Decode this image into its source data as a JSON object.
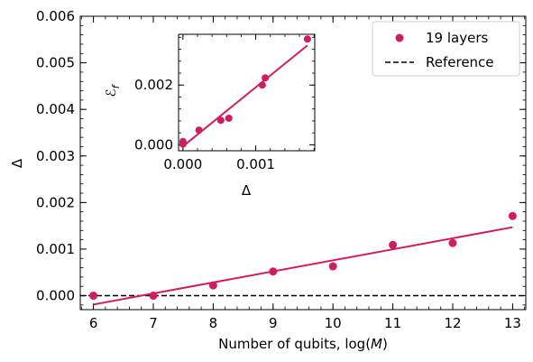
{
  "chart_data": [
    {
      "id": "main",
      "type": "scatter",
      "xlabel": "Number of qubits, log(",
      "xlabel_italic": "M",
      "xlabel_close": ")",
      "ylabel": "Δ",
      "xlim": [
        5.78,
        13.22
      ],
      "ylim": [
        -0.0003,
        0.006
      ],
      "xticks": [
        6,
        7,
        8,
        9,
        10,
        11,
        12,
        13
      ],
      "xtick_labels": [
        "6",
        "7",
        "8",
        "9",
        "10",
        "11",
        "12",
        "13"
      ],
      "yticks": [
        0.0,
        0.001,
        0.002,
        0.003,
        0.004,
        0.005,
        0.006
      ],
      "ytick_labels": [
        "0.000",
        "0.001",
        "0.002",
        "0.003",
        "0.004",
        "0.005",
        "0.006"
      ],
      "x_minor_step": 0.2,
      "y_minor_step": 0.0002,
      "series": [
        {
          "name": "19 layers",
          "color": "#d01c60",
          "x": [
            6,
            7,
            8,
            9,
            10,
            11,
            12,
            13
          ],
          "y": [
            0.0,
            0.0,
            0.00022,
            0.00052,
            0.00063,
            0.00109,
            0.00113,
            0.00171
          ],
          "fit": {
            "x": [
              6,
              13
            ],
            "y": [
              -0.00019,
              0.00147
            ]
          }
        },
        {
          "name": "Reference",
          "color": "#000000",
          "style": "dashed",
          "y_constant": 0.0
        }
      ],
      "legend_position": "top-right"
    },
    {
      "id": "inset",
      "type": "scatter",
      "xlabel": "Δ",
      "ylabel": "ℰ",
      "ylabel_sub": "f",
      "xlim": [
        -6e-05,
        0.00181
      ],
      "ylim": [
        -0.0002,
        0.0037
      ],
      "xticks": [
        0.0,
        0.001
      ],
      "xtick_labels": [
        "0.000",
        "0.001"
      ],
      "yticks": [
        0.0,
        0.002
      ],
      "ytick_labels": [
        "0.000",
        "0.002"
      ],
      "x_minor_step": 0.0002,
      "y_minor_step": 0.0004,
      "series": [
        {
          "color": "#d01c60",
          "x": [
            0.0,
            0.0,
            0.00022,
            0.00052,
            0.00063,
            0.00109,
            0.00113,
            0.00171
          ],
          "y": [
            2e-05,
            0.00011,
            0.00049,
            0.00082,
            0.00089,
            0.002,
            0.00224,
            0.00354
          ],
          "fit": {
            "x": [
              0.0,
              0.00171
            ],
            "y": [
              -5e-05,
              0.00333
            ]
          }
        }
      ]
    }
  ]
}
